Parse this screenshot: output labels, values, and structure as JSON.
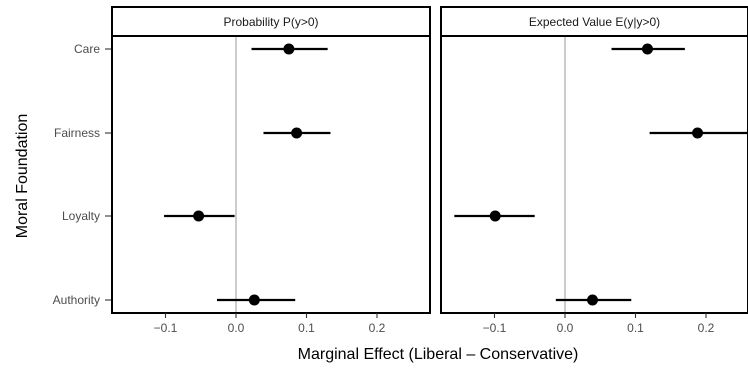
{
  "chart_data": {
    "type": "scatter",
    "subtype": "point-range (coefficient plot)",
    "ylabel": "Moral Foundation",
    "xlabel": "Marginal Effect (Liberal – Conservative)",
    "categories": [
      "Care",
      "Fairness",
      "Loyalty",
      "Authority"
    ],
    "xlim": [
      -0.175,
      0.26
    ],
    "xticks": [
      -0.1,
      0.0,
      0.1,
      0.2
    ],
    "xtick_labels": [
      "−0.1",
      "0.0",
      "0.1",
      "0.2"
    ],
    "reference_line_x": 0,
    "grid": false,
    "legend": "none",
    "panels": [
      {
        "title": "Probability P(y>0)",
        "points": [
          {
            "category": "Care",
            "estimate": 0.075,
            "low": 0.022,
            "high": 0.13
          },
          {
            "category": "Fairness",
            "estimate": 0.086,
            "low": 0.039,
            "high": 0.134
          },
          {
            "category": "Loyalty",
            "estimate": -0.053,
            "low": -0.102,
            "high": -0.002
          },
          {
            "category": "Authority",
            "estimate": 0.026,
            "low": -0.027,
            "high": 0.084
          }
        ]
      },
      {
        "title": "Expected Value E(y|y>0)",
        "points": [
          {
            "category": "Care",
            "estimate": 0.117,
            "low": 0.066,
            "high": 0.17
          },
          {
            "category": "Fairness",
            "estimate": 0.188,
            "low": 0.12,
            "high": 0.26
          },
          {
            "category": "Loyalty",
            "estimate": -0.099,
            "low": -0.157,
            "high": -0.043
          },
          {
            "category": "Authority",
            "estimate": 0.039,
            "low": -0.013,
            "high": 0.094
          }
        ]
      }
    ],
    "colors": {
      "point": "#000000",
      "errorbar": "#000000",
      "reference_line": "#cccccc",
      "panel_border": "#000000",
      "strip_fill": "#ffffff",
      "tick_text": "#4d4d4d"
    }
  }
}
